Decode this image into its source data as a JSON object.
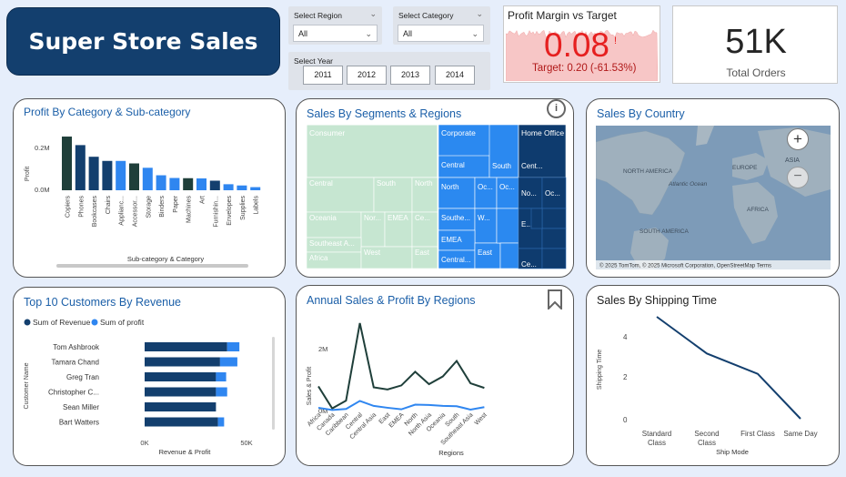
{
  "header": {
    "title": "Super Store Sales"
  },
  "slicers": {
    "region": {
      "label": "Select Region",
      "value": "All"
    },
    "category": {
      "label": "Select Category",
      "value": "All"
    },
    "year": {
      "label": "Select Year",
      "options": [
        "2011",
        "2012",
        "2013",
        "2014"
      ]
    }
  },
  "kpi_margin": {
    "title": "Profit Margin vs Target",
    "value": "0.08",
    "indicator": "!",
    "target": "Target: 0.20 (-61.53%)"
  },
  "kpi_orders": {
    "value": "51K",
    "label": "Total Orders"
  },
  "colors": {
    "navy": "#133f6e",
    "dark_green": "#1f3f3a",
    "bright_blue": "#2f86f0",
    "consumer": "#c6e6d1",
    "corporate": "#2b89f0",
    "home_office": "#0e3b6e",
    "kpi_red": "#e62020"
  },
  "profit_by_category": {
    "title": "Profit By Category & Sub-category",
    "chart_data": {
      "type": "bar",
      "categories": [
        "Copiers",
        "Phones",
        "Bookcases",
        "Chairs",
        "Applianc...",
        "Accessor...",
        "Storage",
        "Binders",
        "Paper",
        "Machines",
        "Art",
        "Furnishin...",
        "Envelopes",
        "Supplies",
        "Labels"
      ],
      "values": [
        258000,
        217000,
        161000,
        141000,
        141000,
        129000,
        108000,
        72000,
        59000,
        58000,
        57000,
        46000,
        29000,
        23000,
        15000
      ],
      "ylabel": "Profit",
      "xlabel": "Sub-category & Category",
      "yticks": [
        "0.2M",
        "0.0M"
      ],
      "ylim": [
        0,
        280000
      ]
    }
  },
  "segments_regions": {
    "title": "Sales By Segments & Regions",
    "chart_data": {
      "type": "treemap",
      "segments": [
        {
          "name": "Consumer",
          "regions": [
            "Central",
            "South",
            "North",
            "Oceania",
            "Nor...",
            "EMEA",
            "Ce...",
            "Southeast A...",
            "Africa",
            "West",
            "East"
          ]
        },
        {
          "name": "Corporate",
          "regions": [
            "Central",
            "South",
            "North",
            "Oc...",
            "Oc...",
            "Southe...",
            "W...",
            "EMEA",
            "Central...",
            "East"
          ]
        },
        {
          "name": "Home Office",
          "regions": [
            "Cent...",
            "No...",
            "Oc...",
            "E...",
            "Ce..."
          ]
        }
      ]
    }
  },
  "sales_by_country": {
    "title": "Sales By Country",
    "map_labels": [
      "NORTH AMERICA",
      "EUROPE",
      "ASIA",
      "AFRICA",
      "SOUTH AMERICA",
      "Atlantic Ocean"
    ],
    "attribution": "© 2025 TomTom, © 2025 Microsoft Corporation, OpenStreetMap Terms",
    "zoom_in": "+",
    "zoom_out": "−"
  },
  "top_customers": {
    "title": "Top 10 Customers By Revenue",
    "legend": [
      "Sum of Revenue",
      "Sum of profit"
    ],
    "chart_data": {
      "type": "bar",
      "orientation": "horizontal",
      "categories": [
        "Tom Ashbrook",
        "Tamara Chand",
        "Greg Tran",
        "Christopher C...",
        "Sean Miller",
        "Bart Watters"
      ],
      "series": [
        {
          "name": "Sum of Revenue",
          "values": [
            40500,
            37000,
            35000,
            35000,
            35000,
            36000
          ]
        },
        {
          "name": "Sum of profit",
          "values": [
            6000,
            8500,
            5000,
            5500,
            0,
            3000
          ]
        }
      ],
      "ylabel": "Customer Name",
      "xlabel": "Revenue & Profit",
      "xticks": [
        "0K",
        "50K"
      ],
      "xlim": [
        0,
        50000
      ]
    }
  },
  "annual_sales": {
    "title": "Annual Sales & Profit By Regions",
    "chart_data": {
      "type": "line",
      "x": [
        "Africa",
        "Canada",
        "Caribbean",
        "Central",
        "Central Asia",
        "East",
        "EMEA",
        "North",
        "North Asia",
        "Oceania",
        "South",
        "Southeast Asia",
        "West"
      ],
      "series": [
        {
          "values": [
            780000,
            70000,
            320000,
            2820000,
            750000,
            680000,
            810000,
            1250000,
            850000,
            1100000,
            1600000,
            880000,
            730000
          ]
        },
        {
          "values": [
            90000,
            20000,
            50000,
            310000,
            150000,
            90000,
            40000,
            190000,
            180000,
            150000,
            140000,
            30000,
            110000
          ]
        }
      ],
      "ylabel": "Sales & Profit",
      "xlabel": "Regions",
      "yticks": [
        "2M",
        "0M"
      ],
      "ylim": [
        0,
        3200000
      ]
    }
  },
  "shipping_time": {
    "title": "Sales By Shipping Time",
    "chart_data": {
      "type": "line",
      "x": [
        "Standard Class",
        "Second Class",
        "First Class",
        "Same Day"
      ],
      "values": [
        5,
        3.2,
        2.2,
        0
      ],
      "ylabel": "Shipping Time",
      "xlabel": "Ship Mode",
      "yticks": [
        "4",
        "2",
        "0"
      ],
      "ylim": [
        0,
        5
      ]
    }
  }
}
